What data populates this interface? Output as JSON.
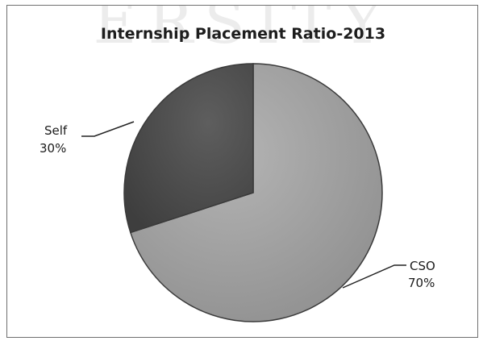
{
  "watermark": "ERSITY",
  "chart_data": {
    "type": "pie",
    "title": "Internship Placement Ratio-2013",
    "categories": [
      "CSO",
      "Self"
    ],
    "values": [
      70,
      30
    ],
    "labels": [
      {
        "name": "CSO",
        "value": "70%"
      },
      {
        "name": "Self",
        "value": "30%"
      }
    ],
    "colors": [
      "#a3a3a3",
      "#525252"
    ]
  }
}
